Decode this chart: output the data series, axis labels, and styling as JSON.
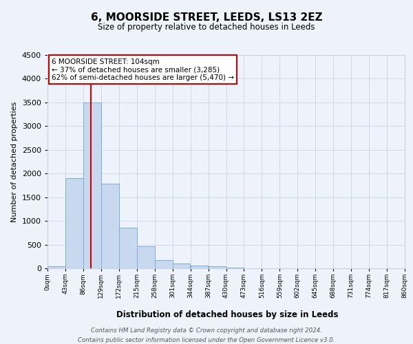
{
  "title": "6, MOORSIDE STREET, LEEDS, LS13 2EZ",
  "subtitle": "Size of property relative to detached houses in Leeds",
  "xlabel": "Distribution of detached houses by size in Leeds",
  "ylabel": "Number of detached properties",
  "bar_color": "#c8d8ee",
  "bar_edge_color": "#7aaed4",
  "grid_color": "#c8d4e4",
  "background_color": "#eef2fa",
  "bins": [
    0,
    43,
    86,
    129,
    172,
    215,
    258,
    301,
    344,
    387,
    430,
    473,
    516,
    559,
    602,
    645,
    688,
    731,
    774,
    817,
    860
  ],
  "bin_labels": [
    "0sqm",
    "43sqm",
    "86sqm",
    "129sqm",
    "172sqm",
    "215sqm",
    "258sqm",
    "301sqm",
    "344sqm",
    "387sqm",
    "430sqm",
    "473sqm",
    "516sqm",
    "559sqm",
    "602sqm",
    "645sqm",
    "688sqm",
    "731sqm",
    "774sqm",
    "817sqm",
    "860sqm"
  ],
  "counts": [
    40,
    1900,
    3500,
    1780,
    850,
    460,
    175,
    100,
    60,
    40,
    20,
    0,
    0,
    0,
    0,
    0,
    0,
    0,
    0,
    0
  ],
  "ylim": [
    0,
    4500
  ],
  "yticks": [
    0,
    500,
    1000,
    1500,
    2000,
    2500,
    3000,
    3500,
    4000,
    4500
  ],
  "property_size": 104,
  "annotation_title": "6 MOORSIDE STREET: 104sqm",
  "annotation_line1": "← 37% of detached houses are smaller (3,285)",
  "annotation_line2": "62% of semi-detached houses are larger (5,470) →",
  "annotation_box_bg": "#ffffff",
  "annotation_box_edge": "#cc0000",
  "red_line_color": "#cc0000",
  "footer_line1": "Contains HM Land Registry data © Crown copyright and database right 2024.",
  "footer_line2": "Contains public sector information licensed under the Open Government Licence v3.0."
}
